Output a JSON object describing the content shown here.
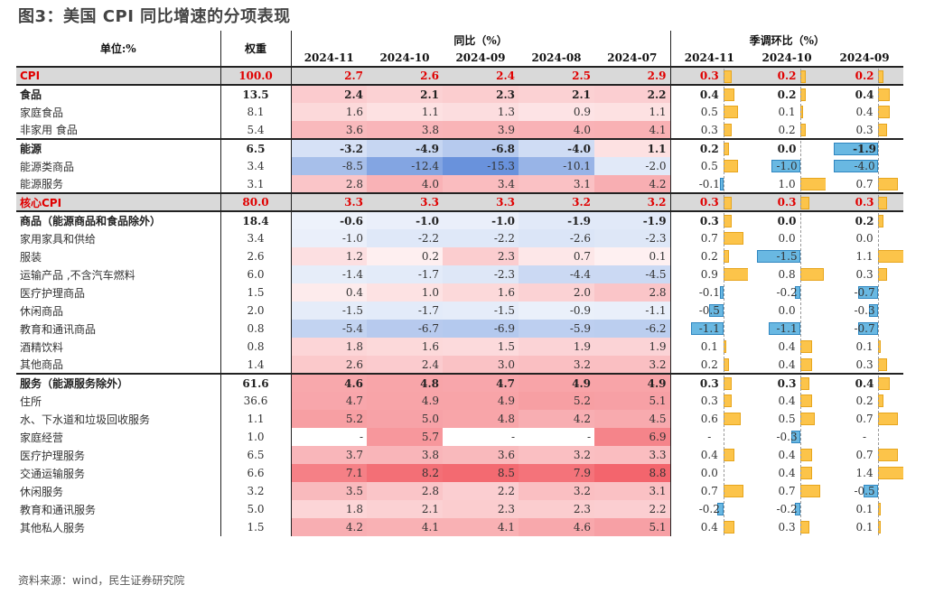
{
  "title": "图3：美国 CPI 同比增速的分项表现",
  "source": "资料来源：wind，民生证券研究院",
  "header": {
    "unit": "单位:%",
    "weight": "权重",
    "yoy_group": "同比（%）",
    "mom_group": "季调环比（%）",
    "yoy_months": [
      "2024-11",
      "2024-10",
      "2024-09",
      "2024-08",
      "2024-07"
    ],
    "mom_months": [
      "2024-11",
      "2024-10",
      "2024-09"
    ]
  },
  "colors": {
    "positive_heat": "#f0464f",
    "negative_heat": "#4f7fd6",
    "highlight_row_bg": "#d9d9d9",
    "highlight_text": "#e00000",
    "mom_bar_positive": "#fcc44a",
    "mom_bar_negative": "#69b8e2"
  },
  "rows": [
    {
      "name": "CPI",
      "weight": "100.0",
      "yoy": [
        "2.7",
        "2.6",
        "2.4",
        "2.5",
        "2.9"
      ],
      "mom": [
        "0.3",
        "0.2",
        "0.2"
      ],
      "level": "main",
      "highlight": true,
      "top": true
    },
    {
      "name": "食品",
      "weight": "13.5",
      "yoy": [
        "2.4",
        "2.1",
        "2.3",
        "2.1",
        "2.2"
      ],
      "mom": [
        "0.4",
        "0.2",
        "0.4"
      ],
      "level": "main",
      "top": true
    },
    {
      "name": "家庭食品",
      "weight": "8.1",
      "yoy": [
        "1.6",
        "1.1",
        "1.3",
        "0.9",
        "1.1"
      ],
      "mom": [
        "0.5",
        "0.1",
        "0.4"
      ],
      "level": "sub"
    },
    {
      "name": "非家用 食品",
      "weight": "5.4",
      "yoy": [
        "3.6",
        "3.8",
        "3.9",
        "4.0",
        "4.1"
      ],
      "mom": [
        "0.3",
        "0.2",
        "0.3"
      ],
      "level": "sub"
    },
    {
      "name": "能源",
      "weight": "6.5",
      "yoy": [
        "-3.2",
        "-4.9",
        "-6.8",
        "-4.0",
        "1.1"
      ],
      "mom": [
        "0.2",
        "0.0",
        "-1.9"
      ],
      "level": "main",
      "top": true
    },
    {
      "name": "能源类商品",
      "weight": "3.4",
      "yoy": [
        "-8.5",
        "-12.4",
        "-15.3",
        "-10.1",
        "-2.0"
      ],
      "mom": [
        "0.5",
        "-1.0",
        "-4.0"
      ],
      "level": "sub"
    },
    {
      "name": "能源服务",
      "weight": "3.1",
      "yoy": [
        "2.8",
        "4.0",
        "3.4",
        "3.1",
        "4.2"
      ],
      "mom": [
        "-0.1",
        "1.0",
        "0.7"
      ],
      "level": "sub"
    },
    {
      "name": "核心CPI",
      "weight": "80.0",
      "yoy": [
        "3.3",
        "3.3",
        "3.3",
        "3.2",
        "3.2"
      ],
      "mom": [
        "0.3",
        "0.3",
        "0.3"
      ],
      "level": "main",
      "highlight": true,
      "top": true
    },
    {
      "name": "商品（能源商品和食品除外）",
      "weight": "18.4",
      "yoy": [
        "-0.6",
        "-1.0",
        "-1.0",
        "-1.9",
        "-1.9"
      ],
      "mom": [
        "0.3",
        "0.0",
        "0.2"
      ],
      "level": "main",
      "top": true
    },
    {
      "name": "家用家具和供给",
      "weight": "3.4",
      "yoy": [
        "-1.0",
        "-2.2",
        "-2.2",
        "-2.6",
        "-2.3"
      ],
      "mom": [
        "0.7",
        "0.0",
        "0.0"
      ],
      "level": "sub"
    },
    {
      "name": "服装",
      "weight": "2.6",
      "yoy": [
        "1.2",
        "0.2",
        "2.3",
        "0.7",
        "0.1"
      ],
      "mom": [
        "0.2",
        "-1.5",
        "1.1"
      ],
      "level": "sub"
    },
    {
      "name": "运输产品 ,不含汽车燃料",
      "weight": "6.0",
      "yoy": [
        "-1.4",
        "-1.7",
        "-2.3",
        "-4.4",
        "-4.5"
      ],
      "mom": [
        "0.9",
        "0.8",
        "0.3"
      ],
      "level": "sub"
    },
    {
      "name": "医疗护理商品",
      "weight": "1.5",
      "yoy": [
        "0.4",
        "1.0",
        "1.6",
        "2.0",
        "2.8"
      ],
      "mom": [
        "-0.1",
        "-0.2",
        "-0.7"
      ],
      "level": "sub"
    },
    {
      "name": "休闲商品",
      "weight": "2.0",
      "yoy": [
        "-1.5",
        "-1.7",
        "-1.5",
        "-0.9",
        "-1.1"
      ],
      "mom": [
        "-0.5",
        "0.0",
        "-0.3"
      ],
      "level": "sub"
    },
    {
      "name": "教育和通讯商品",
      "weight": "0.8",
      "yoy": [
        "-5.4",
        "-6.7",
        "-6.9",
        "-5.9",
        "-6.2"
      ],
      "mom": [
        "-1.1",
        "-1.1",
        "-0.7"
      ],
      "level": "sub"
    },
    {
      "name": "酒精饮料",
      "weight": "0.8",
      "yoy": [
        "1.8",
        "1.6",
        "1.5",
        "1.9",
        "1.9"
      ],
      "mom": [
        "0.1",
        "0.4",
        "0.1"
      ],
      "level": "sub"
    },
    {
      "name": "其他商品",
      "weight": "1.4",
      "yoy": [
        "2.6",
        "2.4",
        "3.0",
        "3.2",
        "3.2"
      ],
      "mom": [
        "0.2",
        "0.4",
        "0.3"
      ],
      "level": "sub"
    },
    {
      "name": "服务（能源服务除外）",
      "weight": "61.6",
      "yoy": [
        "4.6",
        "4.8",
        "4.7",
        "4.9",
        "4.9"
      ],
      "mom": [
        "0.3",
        "0.3",
        "0.4"
      ],
      "level": "main",
      "top": true
    },
    {
      "name": "住所",
      "weight": "36.6",
      "yoy": [
        "4.7",
        "4.9",
        "4.9",
        "5.2",
        "5.1"
      ],
      "mom": [
        "0.3",
        "0.4",
        "0.2"
      ],
      "level": "sub"
    },
    {
      "name": "水、下水道和垃圾回收服务",
      "weight": "1.1",
      "yoy": [
        "5.2",
        "5.0",
        "4.8",
        "4.2",
        "4.5"
      ],
      "mom": [
        "0.6",
        "0.5",
        "0.7"
      ],
      "level": "sub"
    },
    {
      "name": "家庭经营",
      "weight": "1.0",
      "yoy": [
        "-",
        "5.7",
        "-",
        "-",
        "6.9"
      ],
      "mom": [
        "-",
        "-0.3",
        "-"
      ],
      "level": "sub"
    },
    {
      "name": "医疗护理服务",
      "weight": "6.5",
      "yoy": [
        "3.7",
        "3.8",
        "3.6",
        "3.2",
        "3.3"
      ],
      "mom": [
        "0.4",
        "0.4",
        "0.7"
      ],
      "level": "sub"
    },
    {
      "name": "交通运输服务",
      "weight": "6.6",
      "yoy": [
        "7.1",
        "8.2",
        "8.5",
        "7.9",
        "8.8"
      ],
      "mom": [
        "0.0",
        "0.4",
        "1.4"
      ],
      "level": "sub"
    },
    {
      "name": "休闲服务",
      "weight": "3.2",
      "yoy": [
        "3.5",
        "2.8",
        "2.2",
        "3.2",
        "3.1"
      ],
      "mom": [
        "0.7",
        "0.7",
        "-0.5"
      ],
      "level": "sub"
    },
    {
      "name": "教育和通讯服务",
      "weight": "5.0",
      "yoy": [
        "1.8",
        "2.1",
        "2.3",
        "2.3",
        "2.2"
      ],
      "mom": [
        "-0.2",
        "-0.2",
        "0.1"
      ],
      "level": "sub"
    },
    {
      "name": "其他私人服务",
      "weight": "1.5",
      "yoy": [
        "4.2",
        "4.1",
        "4.1",
        "4.6",
        "5.1"
      ],
      "mom": [
        "0.4",
        "0.3",
        "0.1"
      ],
      "level": "sub"
    }
  ]
}
